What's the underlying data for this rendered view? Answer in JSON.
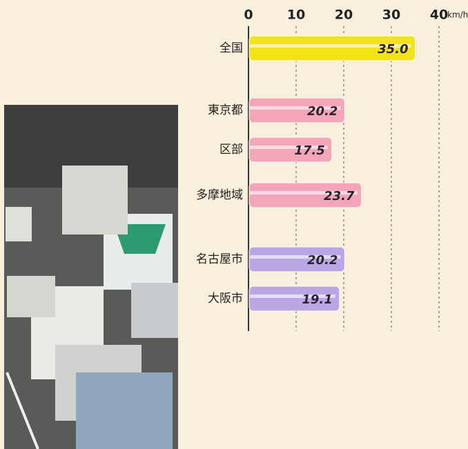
{
  "chart_data": {
    "type": "hbar",
    "categories": [
      "全国",
      "東京都",
      "区部",
      "多摩地域",
      "名古屋市",
      "大阪市"
    ],
    "values": [
      35.0,
      20.2,
      17.5,
      23.7,
      20.2,
      19.1
    ],
    "value_labels": [
      "35.0",
      "20.2",
      "17.5",
      "23.7",
      "20.2",
      "19.1"
    ],
    "colors": [
      "#f2e21a",
      "#f4a6b8",
      "#f4a6b8",
      "#f4a6b8",
      "#bba6e6",
      "#bba6e6"
    ],
    "xlim": [
      0,
      40
    ],
    "xticks": [
      0,
      10,
      20,
      30,
      40
    ],
    "x_unit": "km/h",
    "grid": true
  }
}
